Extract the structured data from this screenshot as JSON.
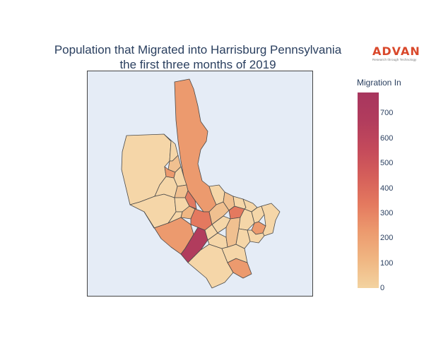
{
  "title": {
    "line1": "Population that Migrated into Harrisburg Pennsylvania",
    "line2": "the first three months of 2019"
  },
  "logo": {
    "word": "ADVAN",
    "tagline": "Research through Technology",
    "color": "#d9482b"
  },
  "colorbar": {
    "title": "Migration In",
    "ticks": [
      "700",
      "600",
      "500",
      "400",
      "300",
      "200",
      "100",
      "0"
    ],
    "range": [
      0,
      790
    ],
    "colors": [
      "#f3d3a0",
      "#f0b783",
      "#ec9a6e",
      "#e4795f",
      "#d55f5a",
      "#c44a5b",
      "#b13c5d",
      "#a8365e"
    ]
  },
  "map": {
    "type": "choropleth",
    "region": "Harrisburg, Pennsylvania",
    "metric": "Migration In",
    "background": "#e5ecf6"
  }
}
